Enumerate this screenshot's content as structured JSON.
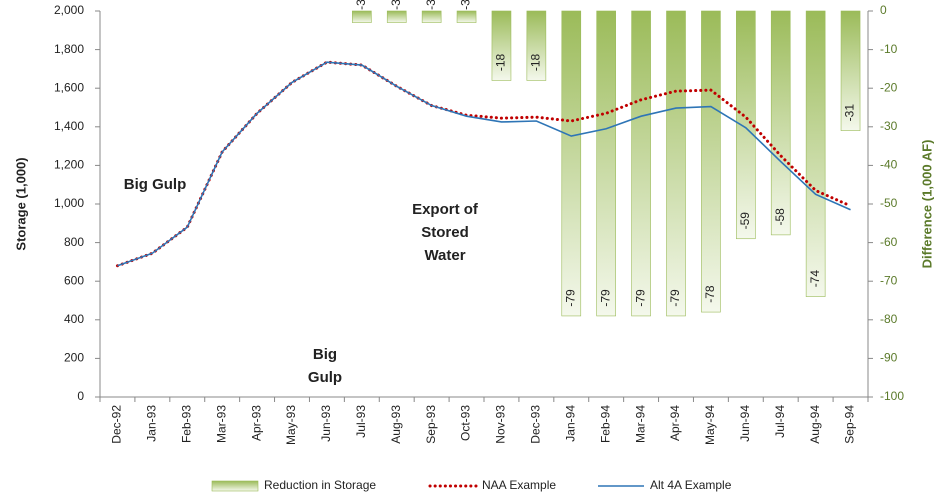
{
  "chart_data": {
    "type": "combo",
    "y_label": "Storage (1,000)",
    "y2_label": "Difference (1,000 AF)",
    "y2_color": "#5b7a2a",
    "categories": [
      "Dec-92",
      "Jan-93",
      "Feb-93",
      "Mar-93",
      "Apr-93",
      "May-93",
      "Jun-93",
      "Jul-93",
      "Aug-93",
      "Sep-93",
      "Oct-93",
      "Nov-93",
      "Dec-93",
      "Jan-94",
      "Feb-94",
      "Mar-94",
      "Apr-94",
      "May-94",
      "Jun-94",
      "Jul-94",
      "Aug-94",
      "Sep-94"
    ],
    "ylim": [
      0,
      2000
    ],
    "yticks": [
      0,
      200,
      400,
      600,
      800,
      {
        "value": 1000,
        "label": "1,000"
      },
      {
        "value": 1200,
        "label": "1,200"
      },
      {
        "value": 1400,
        "label": "1,400"
      },
      {
        "value": 1600,
        "label": "1,600"
      },
      {
        "value": 1800,
        "label": "1,800"
      },
      {
        "value": 2000,
        "label": "2,000"
      }
    ],
    "y2lim": [
      -100,
      0
    ],
    "y2ticks": [
      -100,
      -90,
      -80,
      -70,
      -60,
      -50,
      -40,
      -30,
      -20,
      -10,
      0
    ],
    "series": [
      {
        "name": "Reduction in Storage",
        "type": "bar",
        "axis": "y2",
        "color": "#9bbb59",
        "values": [
          null,
          null,
          null,
          null,
          null,
          null,
          null,
          -3,
          -3,
          -3,
          -3,
          -18,
          -18,
          -79,
          -79,
          -79,
          -79,
          -78,
          -59,
          -58,
          -74,
          -31
        ]
      },
      {
        "name": "NAA Example",
        "type": "line",
        "line_style": "dotted",
        "color": "#c00000",
        "values": [
          680,
          745,
          880,
          1270,
          1470,
          1630,
          1735,
          1720,
          1610,
          1510,
          1460,
          1445,
          1450,
          1430,
          1470,
          1540,
          1585,
          1590,
          1450,
          1250,
          1070,
          990
        ]
      },
      {
        "name": "Alt 4A Example",
        "type": "line",
        "line_style": "solid",
        "color": "#2e75b6",
        "values": [
          680,
          745,
          880,
          1270,
          1470,
          1630,
          1735,
          1720,
          1610,
          1510,
          1455,
          1425,
          1430,
          1352,
          1390,
          1455,
          1497,
          1505,
          1395,
          1220,
          1050,
          970
        ]
      }
    ],
    "annotations": [
      {
        "lines": [
          "Big Gulp"
        ]
      },
      {
        "lines": [
          "Big",
          "Gulp"
        ]
      },
      {
        "lines": [
          "Export of",
          "Stored",
          "Water"
        ]
      }
    ]
  }
}
